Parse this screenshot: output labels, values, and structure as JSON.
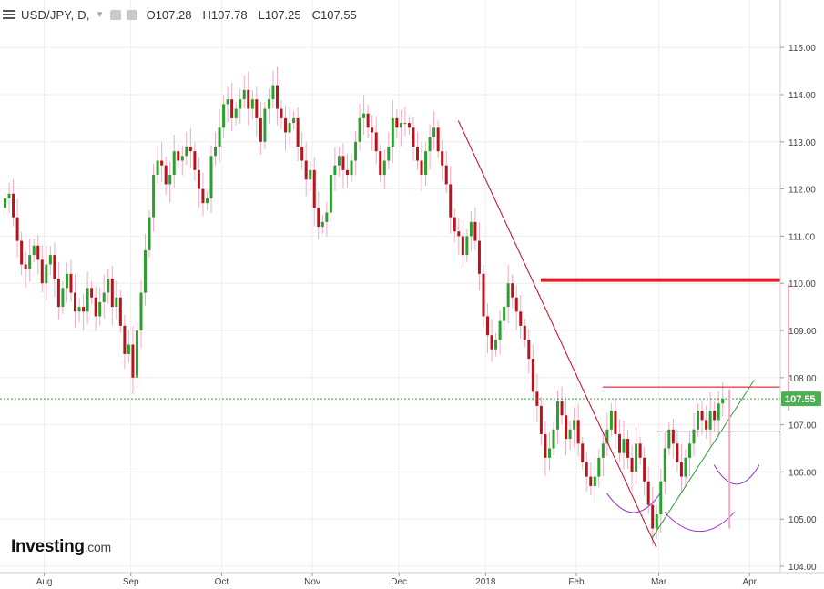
{
  "header": {
    "symbol": "USD/JPY",
    "interval": "D",
    "open_label": "O",
    "open": "107.28",
    "high_label": "H",
    "high": "107.78",
    "low_label": "L",
    "low": "107.25",
    "close_label": "C",
    "close": "107.55"
  },
  "logo": {
    "text": "Investing",
    "suffix": ".com"
  },
  "colors": {
    "up": "#2ca02c",
    "down": "#b8141c",
    "trendline": "#d0021b",
    "resistance": "#e0202a",
    "support": "#222222",
    "neckline": "#2e9c3e",
    "pattern_arc": "#9b30c8",
    "pink_marker": "#f4a7c0",
    "price_tag": "#4caf50",
    "grid": "#eeeeee"
  },
  "chart_data": {
    "type": "candlestick",
    "title": "USD/JPY, D",
    "current_price_label": "107.55",
    "ylim": [
      104.0,
      115.5
    ],
    "y_ticks": [
      "104.00",
      "105.00",
      "106.00",
      "107.00",
      "108.00",
      "109.00",
      "110.00",
      "111.00",
      "112.00",
      "113.00",
      "114.00",
      "115.00"
    ],
    "x_ticks": [
      "Aug",
      "Sep",
      "Oct",
      "Nov",
      "Dec",
      "2018",
      "Feb",
      "Mar",
      "Apr"
    ],
    "x_tick_positions": [
      3,
      24,
      46,
      68,
      89,
      110,
      132,
      152,
      174
    ],
    "close_series": [
      111.8,
      111.9,
      111.4,
      110.9,
      110.4,
      110.3,
      110.6,
      110.8,
      110.5,
      110.0,
      110.4,
      110.6,
      110.1,
      109.5,
      109.9,
      110.2,
      109.8,
      109.4,
      109.5,
      109.4,
      109.9,
      109.7,
      109.3,
      109.6,
      109.8,
      110.1,
      109.5,
      109.7,
      109.1,
      108.5,
      108.7,
      108.0,
      109.0,
      109.8,
      110.7,
      111.4,
      112.3,
      112.6,
      112.5,
      112.1,
      112.3,
      112.8,
      112.6,
      112.7,
      112.9,
      112.8,
      112.4,
      112.0,
      111.7,
      111.8,
      112.7,
      112.9,
      113.3,
      113.8,
      113.9,
      113.5,
      113.7,
      113.9,
      114.1,
      113.7,
      113.9,
      113.5,
      113.0,
      113.7,
      113.9,
      114.2,
      113.7,
      113.5,
      113.2,
      113.4,
      113.5,
      112.9,
      112.6,
      112.2,
      112.4,
      111.6,
      111.2,
      111.3,
      111.5,
      112.3,
      112.5,
      112.7,
      112.4,
      112.3,
      112.6,
      113.0,
      113.5,
      113.6,
      113.3,
      113.2,
      112.8,
      112.3,
      112.6,
      112.9,
      113.5,
      113.3,
      113.4,
      113.4,
      113.3,
      112.9,
      112.6,
      112.3,
      112.8,
      113.1,
      113.3,
      112.8,
      112.5,
      112.1,
      111.4,
      111.1,
      111.0,
      110.6,
      111.0,
      111.3,
      110.9,
      110.2,
      109.3,
      108.9,
      108.6,
      108.8,
      109.2,
      109.5,
      110.0,
      109.7,
      109.4,
      109.1,
      108.8,
      108.4,
      107.7,
      107.4,
      106.8,
      106.3,
      106.5,
      106.9,
      107.5,
      107.2,
      106.7,
      106.9,
      107.1,
      106.6,
      106.2,
      105.9,
      105.7,
      105.9,
      106.3,
      106.6,
      106.9,
      107.3,
      106.8,
      106.4,
      106.7,
      106.3,
      106.0,
      106.6,
      106.3,
      105.8,
      105.3,
      104.8,
      105.1,
      105.8,
      106.5,
      106.9,
      106.6,
      106.2,
      105.9,
      106.3,
      106.6,
      106.9,
      107.3,
      107.1,
      106.9,
      107.3,
      107.1,
      107.45,
      107.55
    ],
    "overlays": {
      "resistance_level": 110.07,
      "upper_channel_level": 107.8,
      "neckline_level": 106.85,
      "downtrend_line": {
        "from": [
          110,
          113.45
        ],
        "to": [
          158,
          104.4
        ]
      },
      "uptrend_line": {
        "from": [
          157,
          104.6
        ],
        "to": [
          180,
          107.95
        ]
      },
      "dotted_last_price": 107.55
    }
  }
}
